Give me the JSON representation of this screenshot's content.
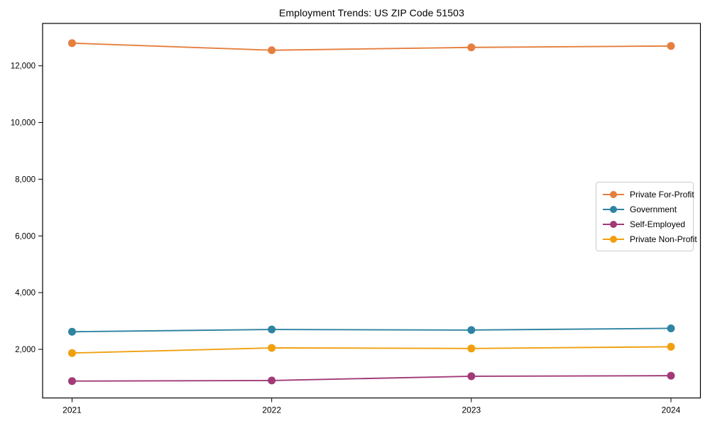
{
  "title": "Employment Trends: US ZIP Code 51503",
  "chart_data": {
    "type": "line",
    "title": "Employment Trends: US ZIP Code 51503",
    "x": [
      2021,
      2022,
      2023,
      2024
    ],
    "xtick_labels": [
      "2021",
      "2022",
      "2023",
      "2024"
    ],
    "series": [
      {
        "name": "Private For-Profit",
        "color": "#e57f3e",
        "values": [
          12800,
          12550,
          12650,
          12700
        ]
      },
      {
        "name": "Government",
        "color": "#2f84a2",
        "values": [
          2620,
          2700,
          2680,
          2740
        ]
      },
      {
        "name": "Self-Employed",
        "color": "#a23a78",
        "values": [
          880,
          900,
          1050,
          1070
        ]
      },
      {
        "name": "Private Non-Profit",
        "color": "#f0a00f",
        "values": [
          1870,
          2050,
          2030,
          2090
        ]
      }
    ],
    "yticks": [
      2000,
      4000,
      6000,
      8000,
      10000,
      12000
    ],
    "ytick_labels": [
      "2,000",
      "4,000",
      "6,000",
      "8,000",
      "10,000",
      "12,000"
    ],
    "ylim": [
      325,
      13530
    ],
    "xlabel": "",
    "ylabel": "",
    "grid": false,
    "marker": "circle",
    "legend_position": "center-right",
    "legend_frame": true,
    "background_color": "#ffffff",
    "spine_color": "#000000"
  }
}
